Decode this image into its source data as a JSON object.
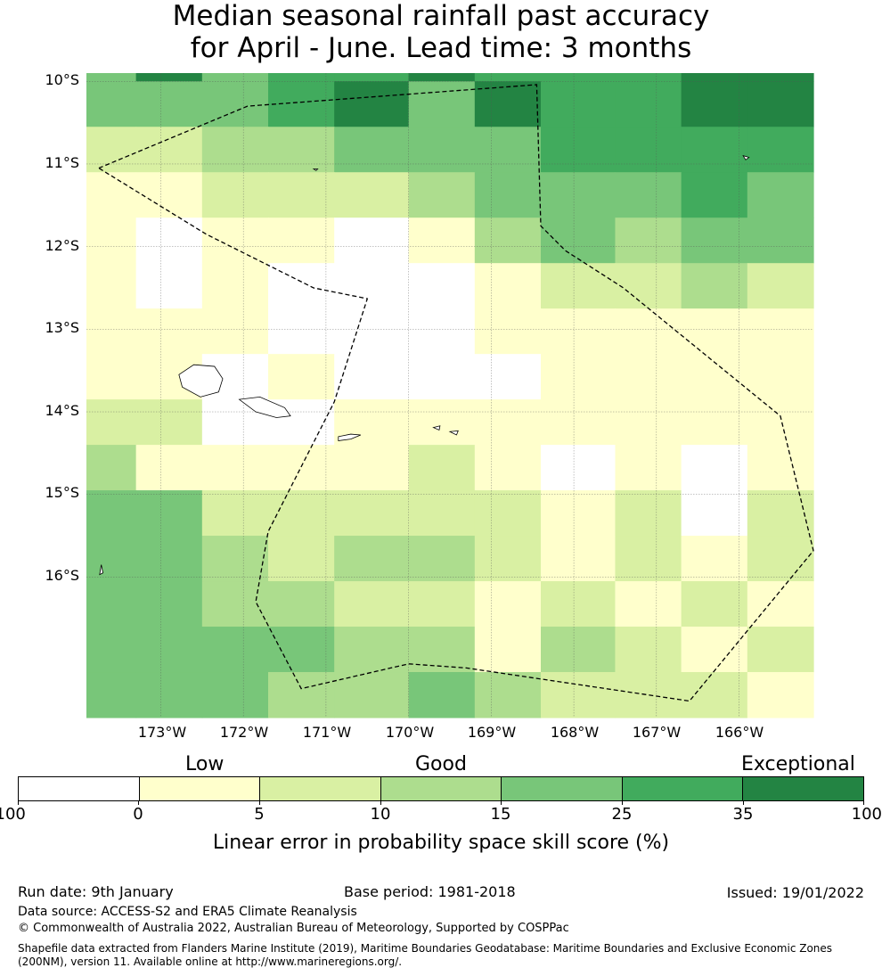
{
  "title": {
    "line1": "Median seasonal rainfall past accuracy",
    "line2": "for April - June. Lead time: 3 months"
  },
  "map": {
    "lat_labels": [
      "10°S",
      "11°S",
      "12°S",
      "13°S",
      "14°S",
      "15°S",
      "16°S"
    ],
    "lon_labels": [
      "173°W",
      "172°W",
      "171°W",
      "170°W",
      "169°W",
      "168°W",
      "167°W",
      "166°W"
    ],
    "extent": {
      "lon_min": -173.9,
      "lon_max": -165.1,
      "lat_north": -9.9,
      "lat_south": -17.7
    },
    "grid_lon_edges": [
      -173.9,
      -173.3,
      -172.5,
      -171.7,
      -170.9,
      -170.0,
      -169.2,
      -168.4,
      -167.5,
      -166.7,
      -165.9,
      -165.1
    ],
    "grid_lat_edges": [
      -9.9,
      -10.0,
      -10.55,
      -11.1,
      -11.65,
      -12.2,
      -12.75,
      -13.3,
      -13.85,
      -14.4,
      -14.95,
      -15.5,
      -16.05,
      -16.6,
      -17.15,
      -17.7
    ],
    "grid_classes": [
      [
        4,
        6,
        4,
        5,
        5,
        6,
        5,
        5,
        5,
        6,
        6
      ],
      [
        4,
        4,
        4,
        5,
        6,
        4,
        6,
        5,
        5,
        6,
        6
      ],
      [
        2,
        2,
        3,
        3,
        4,
        4,
        4,
        5,
        5,
        5,
        5
      ],
      [
        1,
        1,
        2,
        2,
        2,
        3,
        4,
        4,
        4,
        5,
        4
      ],
      [
        1,
        0,
        1,
        1,
        0,
        1,
        3,
        4,
        3,
        4,
        4
      ],
      [
        1,
        0,
        1,
        0,
        0,
        0,
        1,
        2,
        2,
        3,
        2
      ],
      [
        1,
        1,
        1,
        0,
        0,
        0,
        1,
        1,
        1,
        1,
        1
      ],
      [
        1,
        1,
        0,
        1,
        0,
        0,
        0,
        1,
        1,
        1,
        1
      ],
      [
        2,
        2,
        0,
        0,
        1,
        1,
        1,
        1,
        1,
        1,
        1
      ],
      [
        3,
        1,
        1,
        1,
        1,
        2,
        1,
        0,
        1,
        0,
        1
      ],
      [
        4,
        4,
        2,
        2,
        2,
        2,
        2,
        1,
        2,
        0,
        2
      ],
      [
        4,
        4,
        3,
        2,
        3,
        3,
        2,
        1,
        2,
        1,
        2
      ],
      [
        4,
        4,
        3,
        3,
        2,
        2,
        1,
        2,
        1,
        2,
        1
      ],
      [
        4,
        4,
        4,
        4,
        3,
        3,
        1,
        3,
        2,
        1,
        2
      ],
      [
        4,
        4,
        4,
        3,
        3,
        4,
        3,
        2,
        2,
        2,
        1
      ]
    ],
    "eez_boundary": [
      [
        -173.75,
        -11.05
      ],
      [
        -171.95,
        -10.3
      ],
      [
        -168.45,
        -10.04
      ],
      [
        -168.4,
        -11.75
      ],
      [
        -168.1,
        -12.05
      ],
      [
        -167.4,
        -12.5
      ],
      [
        -165.5,
        -14.05
      ],
      [
        -165.1,
        -15.68
      ],
      [
        -166.6,
        -17.5
      ],
      [
        -169.3,
        -17.1
      ],
      [
        -170.0,
        -17.05
      ],
      [
        -171.3,
        -17.35
      ],
      [
        -171.85,
        -16.3
      ],
      [
        -171.7,
        -15.45
      ],
      [
        -170.9,
        -13.88
      ],
      [
        -170.5,
        -12.63
      ],
      [
        -171.15,
        -12.5
      ],
      [
        -172.45,
        -11.85
      ],
      [
        -173.1,
        -11.45
      ],
      [
        -173.75,
        -11.05
      ]
    ],
    "islands": [
      [
        [
          -172.78,
          -13.55
        ],
        [
          -172.6,
          -13.43
        ],
        [
          -172.35,
          -13.45
        ],
        [
          -172.25,
          -13.6
        ],
        [
          -172.3,
          -13.76
        ],
        [
          -172.52,
          -13.82
        ],
        [
          -172.74,
          -13.7
        ],
        [
          -172.78,
          -13.55
        ]
      ],
      [
        [
          -172.05,
          -13.85
        ],
        [
          -171.8,
          -13.82
        ],
        [
          -171.5,
          -13.95
        ],
        [
          -171.43,
          -14.05
        ],
        [
          -171.6,
          -14.07
        ],
        [
          -171.85,
          -14.0
        ],
        [
          -172.05,
          -13.85
        ]
      ],
      [
        [
          -170.85,
          -14.3
        ],
        [
          -170.7,
          -14.27
        ],
        [
          -170.58,
          -14.28
        ],
        [
          -170.7,
          -14.33
        ],
        [
          -170.85,
          -14.35
        ],
        [
          -170.85,
          -14.3
        ]
      ],
      [
        [
          -169.7,
          -14.19
        ],
        [
          -169.62,
          -14.17
        ],
        [
          -169.63,
          -14.22
        ],
        [
          -169.7,
          -14.19
        ]
      ],
      [
        [
          -169.5,
          -14.24
        ],
        [
          -169.4,
          -14.23
        ],
        [
          -169.42,
          -14.28
        ],
        [
          -169.5,
          -14.24
        ]
      ],
      [
        [
          -173.72,
          -15.85
        ],
        [
          -173.7,
          -15.95
        ],
        [
          -173.74,
          -15.97
        ],
        [
          -173.72,
          -15.85
        ]
      ],
      [
        [
          -171.15,
          -11.06
        ],
        [
          -171.1,
          -11.06
        ],
        [
          -171.12,
          -11.08
        ],
        [
          -171.15,
          -11.06
        ]
      ],
      [
        [
          -165.95,
          -10.9
        ],
        [
          -165.88,
          -10.92
        ],
        [
          -165.92,
          -10.95
        ],
        [
          -165.95,
          -10.9
        ]
      ]
    ]
  },
  "legend": {
    "categories": [
      "Low",
      "Good",
      "Exceptional"
    ],
    "ticks": [
      "-100",
      "0",
      "5",
      "10",
      "15",
      "25",
      "35",
      "100"
    ],
    "colors": [
      "#ffffff",
      "#ffffcc",
      "#d9f0a3",
      "#addd8e",
      "#78c679",
      "#41ab5d",
      "#238443"
    ],
    "label": "Linear error in probability space skill score (%)"
  },
  "footer": {
    "run_date": "Run date: 9th January",
    "base_period": "Base period: 1981-2018",
    "issued": "Issued: 19/01/2022",
    "data_source": "Data source: ACCESS-S2 and ERA5 Climate Reanalysis",
    "copyright": "© Commonwealth of Australia 2022, Australian Bureau of Meteorology, Supported by COSPPac",
    "shapefile_line1": "Shapefile data extracted from Flanders Marine Institute (2019), Maritime Boundaries Geodatabase: Maritime Boundaries and Exclusive Economic Zones",
    "shapefile_line2": "(200NM), version 11. Available online at http://www.marineregions.org/."
  }
}
